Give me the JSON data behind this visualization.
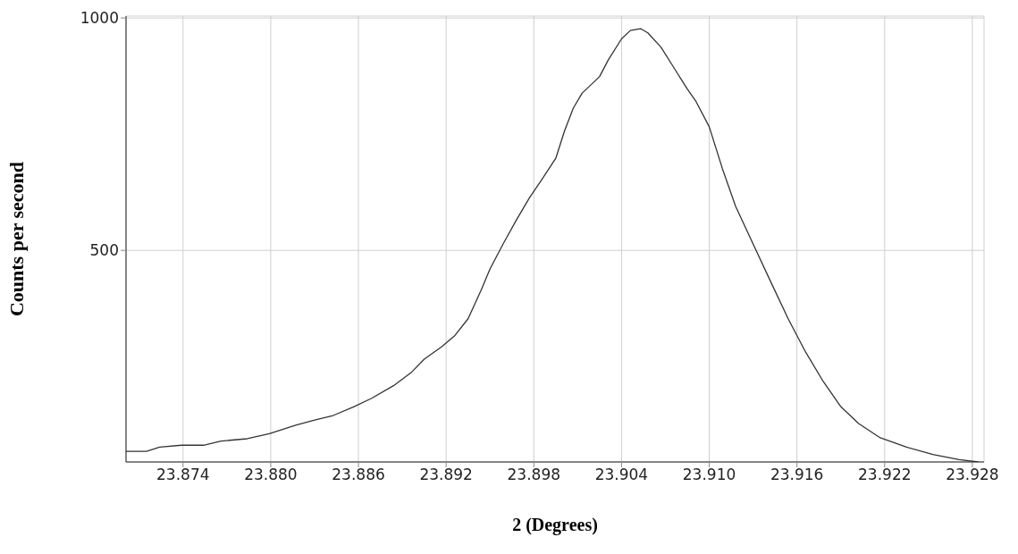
{
  "chart_data": {
    "type": "line",
    "xlabel": "2   (Degrees)",
    "ylabel": "Counts per second",
    "x": [
      23.8701,
      23.8715,
      23.8724,
      23.8739,
      23.8754,
      23.8766,
      23.8784,
      23.8799,
      23.8817,
      23.883,
      23.8842,
      23.8857,
      23.8869,
      23.8884,
      23.8896,
      23.8905,
      23.8917,
      23.8926,
      23.8935,
      23.8944,
      23.895,
      23.8959,
      23.8968,
      23.8977,
      23.8986,
      23.8995,
      23.9001,
      23.9007,
      23.9013,
      23.9025,
      23.9031,
      23.904,
      23.9046,
      23.9053,
      23.9058,
      23.9067,
      23.9076,
      23.9085,
      23.9091,
      23.91,
      23.9109,
      23.9118,
      23.913,
      23.9142,
      23.9154,
      23.9166,
      23.9178,
      23.919,
      23.9202,
      23.9217,
      23.9235,
      23.9253,
      23.9271,
      23.9284
    ],
    "series": [
      {
        "color": "#333333",
        "values": [
          68,
          68,
          77,
          81,
          81,
          90,
          95,
          106,
          124,
          135,
          144,
          164,
          182,
          209,
          237,
          266,
          293,
          317,
          353,
          415,
          460,
          514,
          565,
          613,
          655,
          698,
          757,
          806,
          838,
          874,
          910,
          955,
          973,
          977,
          968,
          937,
          892,
          847,
          820,
          766,
          676,
          595,
          514,
          433,
          353,
          281,
          218,
          164,
          128,
          97,
          77,
          61,
          50,
          45
        ]
      }
    ],
    "xlim": [
      23.8701,
      23.9288
    ],
    "xticks": [
      23.874,
      {
        "value": 23.88,
        "label": "23.880"
      },
      23.886,
      23.892,
      23.898,
      23.904,
      {
        "value": 23.91,
        "label": "23.910"
      },
      23.916,
      23.922,
      23.928
    ],
    "ylim": [
      45,
      1004
    ],
    "yticks": [
      500,
      1000
    ],
    "grid": true,
    "marker": "none",
    "line_style": "solid"
  }
}
